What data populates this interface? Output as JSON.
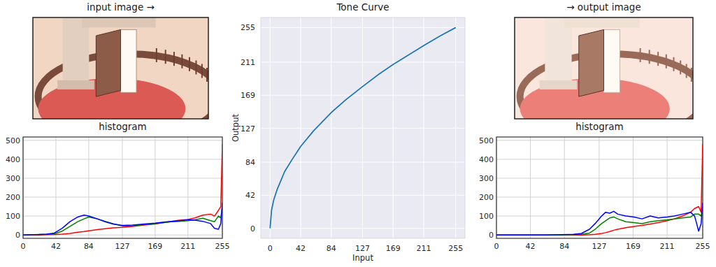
{
  "chart_data": [
    {
      "type": "image",
      "title": "input image →"
    },
    {
      "type": "line",
      "title": "histogram",
      "grid": true,
      "xlim": [
        0,
        255
      ],
      "ylim": [
        -18,
        518
      ],
      "xticks": [
        0,
        42,
        84,
        127,
        169,
        211,
        255
      ],
      "yticks": [
        0,
        100,
        200,
        300,
        400,
        500
      ],
      "x": [
        0,
        10,
        20,
        30,
        40,
        50,
        60,
        70,
        78,
        84,
        95,
        105,
        115,
        127,
        140,
        155,
        169,
        180,
        190,
        200,
        211,
        220,
        230,
        240,
        245,
        250,
        253,
        255
      ],
      "series": [
        {
          "color": "#ff0000",
          "values": [
            0,
            0,
            0,
            1,
            2,
            4,
            8,
            14,
            18,
            22,
            28,
            33,
            37,
            40,
            45,
            52,
            58,
            65,
            72,
            78,
            82,
            90,
            105,
            110,
            100,
            130,
            150,
            480
          ]
        },
        {
          "color": "#008000",
          "values": [
            0,
            1,
            2,
            3,
            6,
            20,
            45,
            70,
            85,
            95,
            85,
            72,
            60,
            48,
            48,
            55,
            60,
            65,
            70,
            72,
            75,
            80,
            88,
            75,
            70,
            100,
            90,
            150
          ]
        },
        {
          "color": "#0000ff",
          "values": [
            0,
            1,
            2,
            4,
            10,
            35,
            70,
            95,
            105,
            100,
            85,
            70,
            58,
            50,
            52,
            58,
            62,
            68,
            72,
            75,
            80,
            78,
            72,
            60,
            35,
            30,
            60,
            170
          ]
        }
      ]
    },
    {
      "type": "line",
      "title": "Tone Curve",
      "x_label": "Input",
      "y_label": "Output",
      "grid": true,
      "xlim": [
        -12.75,
        267.75
      ],
      "ylim": [
        -12.75,
        267.75
      ],
      "xticks": [
        0,
        42,
        84,
        127,
        169,
        211,
        255
      ],
      "yticks": [
        0,
        42,
        84,
        127,
        169,
        211,
        255
      ],
      "x": [
        0,
        2,
        5,
        10,
        20,
        30,
        42,
        60,
        84,
        105,
        127,
        150,
        169,
        190,
        211,
        233,
        255
      ],
      "series": [
        {
          "color": "#1f77b4",
          "values": [
            0,
            23,
            36,
            50,
            72,
            87,
            104,
            124,
            147,
            164,
            180,
            196,
            208,
            220,
            232,
            244,
            255
          ]
        }
      ]
    },
    {
      "type": "image",
      "title": "→ output image"
    },
    {
      "type": "line",
      "title": "histogram",
      "grid": true,
      "xlim": [
        0,
        255
      ],
      "ylim": [
        -18,
        518
      ],
      "xticks": [
        0,
        42,
        84,
        127,
        169,
        211,
        255
      ],
      "yticks": [
        0,
        100,
        200,
        300,
        400,
        500
      ],
      "x": [
        0,
        20,
        40,
        60,
        80,
        95,
        105,
        115,
        122,
        130,
        135,
        140,
        145,
        150,
        160,
        170,
        180,
        190,
        200,
        211,
        220,
        230,
        240,
        245,
        250,
        253,
        255
      ],
      "series": [
        {
          "color": "#ff0000",
          "values": [
            0,
            0,
            0,
            0,
            0,
            0,
            0,
            1,
            3,
            8,
            12,
            18,
            25,
            30,
            38,
            45,
            50,
            58,
            65,
            75,
            85,
            100,
            120,
            140,
            150,
            120,
            480
          ]
        },
        {
          "color": "#008000",
          "values": [
            0,
            0,
            0,
            0,
            0,
            1,
            3,
            10,
            30,
            60,
            75,
            90,
            95,
            85,
            70,
            65,
            60,
            70,
            75,
            80,
            85,
            90,
            95,
            110,
            110,
            100,
            150
          ]
        },
        {
          "color": "#0000ff",
          "values": [
            0,
            0,
            0,
            0,
            1,
            3,
            8,
            30,
            60,
            100,
            120,
            115,
            125,
            110,
            100,
            95,
            85,
            100,
            90,
            95,
            100,
            110,
            120,
            100,
            20,
            60,
            170
          ]
        }
      ]
    }
  ]
}
